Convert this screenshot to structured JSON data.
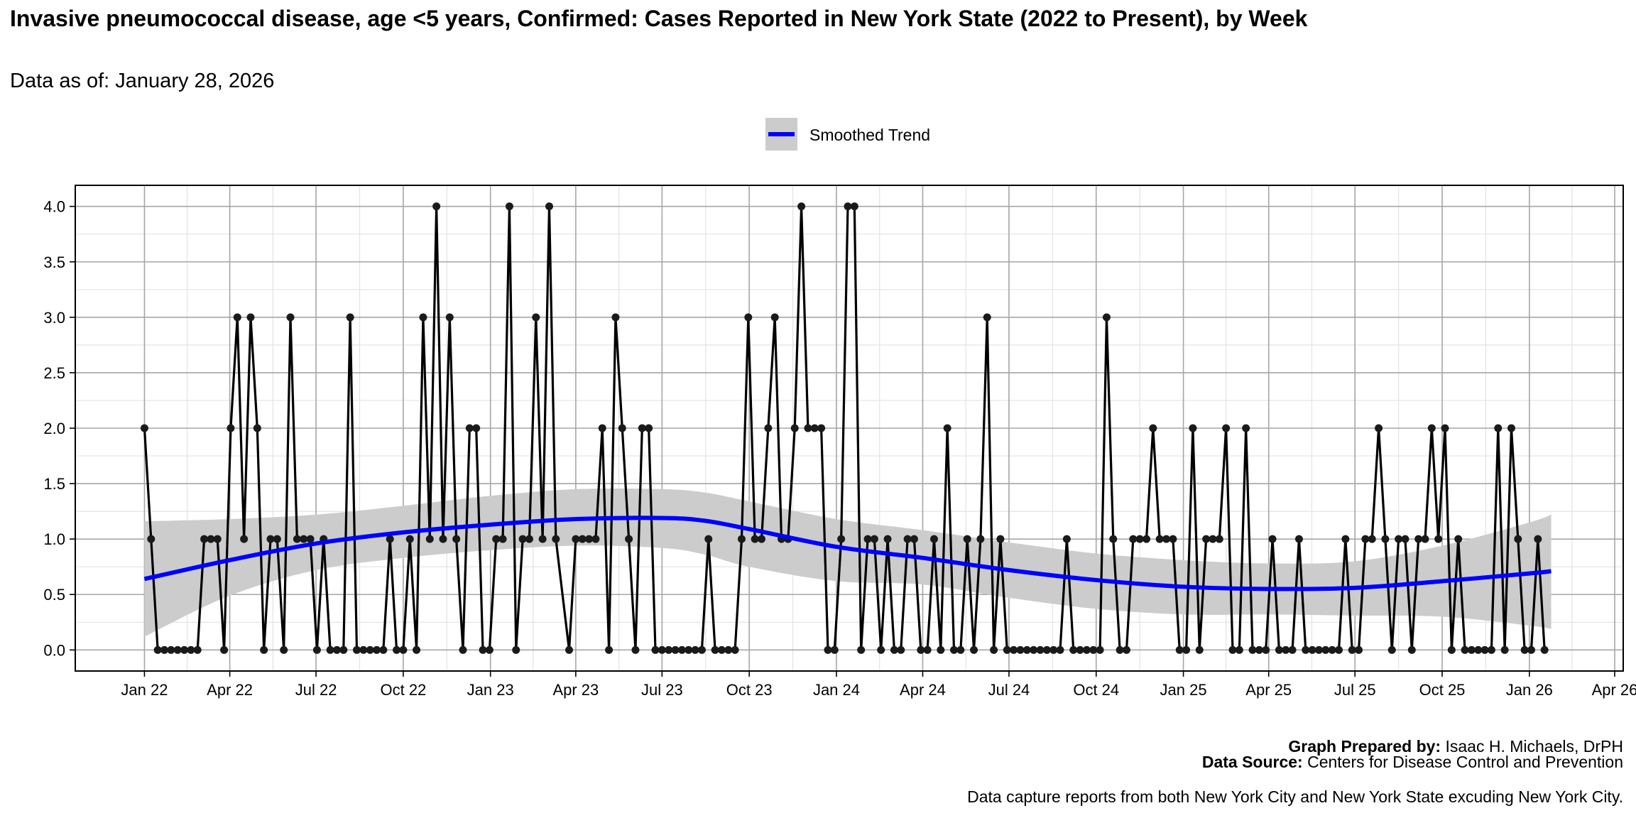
{
  "title": "Invasive pneumococcal disease, age <5 years, Confirmed: Cases Reported in New York State (2022 to Present), by Week",
  "subtitle": "Data as of: January 28, 2026",
  "footer": {
    "prepared_label": "Graph Prepared by:",
    "prepared_value": " Isaac H. Michaels, DrPH",
    "source_label": "Data Source:",
    "source_value": " Centers for Disease Control and Prevention",
    "note": "Data capture reports from both New York City and New York State excuding New York City."
  },
  "colors": {
    "trend": "#0000ff",
    "band": "#cccccc",
    "points": "#000000"
  },
  "chart_data": {
    "type": "line",
    "title": "Invasive pneumococcal disease, age <5 years, Confirmed: Cases Reported in New York State (2022 to Present), by Week",
    "xlabel": "",
    "ylabel": "",
    "ylim": [
      0,
      4
    ],
    "yticks": [
      "0.0",
      "0.5",
      "1.0",
      "1.5",
      "2.0",
      "2.5",
      "3.0",
      "3.5",
      "4.0"
    ],
    "xticks": [
      {
        "label": "Jan 22",
        "date": "2022-01-01"
      },
      {
        "label": "Apr 22",
        "date": "2022-04-01"
      },
      {
        "label": "Jul 22",
        "date": "2022-07-01"
      },
      {
        "label": "Oct 22",
        "date": "2022-10-01"
      },
      {
        "label": "Jan 23",
        "date": "2023-01-01"
      },
      {
        "label": "Apr 23",
        "date": "2023-04-01"
      },
      {
        "label": "Jul 23",
        "date": "2023-07-01"
      },
      {
        "label": "Oct 23",
        "date": "2023-10-01"
      },
      {
        "label": "Jan 24",
        "date": "2024-01-01"
      },
      {
        "label": "Apr 24",
        "date": "2024-04-01"
      },
      {
        "label": "Jul 24",
        "date": "2024-07-01"
      },
      {
        "label": "Oct 24",
        "date": "2024-10-01"
      },
      {
        "label": "Jan 25",
        "date": "2025-01-01"
      },
      {
        "label": "Apr 25",
        "date": "2025-04-01"
      },
      {
        "label": "Jul 25",
        "date": "2025-07-01"
      },
      {
        "label": "Oct 25",
        "date": "2025-10-01"
      },
      {
        "label": "Jan 26",
        "date": "2026-01-01"
      },
      {
        "label": "Apr 26",
        "date": "2026-04-01"
      }
    ],
    "grid": true,
    "legend": {
      "position": "top",
      "entries": [
        "Smoothed Trend"
      ]
    },
    "series": [
      {
        "name": "Weekly cases",
        "start_date": "2022-01-01",
        "interval_days": 7,
        "values": [
          2,
          1,
          0,
          0,
          0,
          0,
          0,
          0,
          0,
          1,
          1,
          1,
          0,
          2,
          3,
          1,
          3,
          2,
          0,
          1,
          1,
          0,
          3,
          1,
          1,
          1,
          0,
          1,
          0,
          0,
          0,
          3,
          0,
          0,
          0,
          0,
          0,
          1,
          0,
          0,
          1,
          0,
          3,
          1,
          4,
          1,
          3,
          1,
          0,
          2,
          2,
          0,
          0,
          1,
          1,
          4,
          0,
          1,
          1,
          3,
          1,
          4,
          1,
          null,
          0,
          1,
          1,
          1,
          1,
          2,
          0,
          3,
          2,
          1,
          0,
          2,
          2,
          0,
          0,
          0,
          0,
          0,
          0,
          0,
          0,
          1,
          0,
          0,
          0,
          0,
          1,
          3,
          1,
          1,
          2,
          3,
          1,
          1,
          2,
          4,
          2,
          2,
          2,
          0,
          0,
          1,
          4,
          4,
          0,
          1,
          1,
          0,
          1,
          0,
          0,
          1,
          1,
          0,
          0,
          1,
          0,
          2,
          0,
          0,
          1,
          0,
          1,
          3,
          0,
          1,
          0,
          0,
          0,
          0,
          0,
          0,
          0,
          0,
          0,
          1,
          0,
          0,
          0,
          0,
          0,
          3,
          1,
          0,
          0,
          1,
          1,
          1,
          2,
          1,
          1,
          1,
          0,
          0,
          2,
          0,
          1,
          1,
          1,
          2,
          0,
          0,
          2,
          0,
          0,
          0,
          1,
          0,
          0,
          0,
          1,
          0,
          0,
          0,
          0,
          0,
          0,
          1,
          0,
          0,
          1,
          1,
          2,
          1,
          0,
          1,
          1,
          0,
          1,
          1,
          2,
          1,
          2,
          0,
          1,
          0,
          0,
          0,
          0,
          0,
          2,
          0,
          2,
          1,
          0,
          0,
          1,
          0
        ]
      },
      {
        "name": "Smoothed Trend",
        "dates": [
          "2022-01-01",
          "2022-04-01",
          "2022-07-01",
          "2022-10-01",
          "2023-01-01",
          "2023-04-01",
          "2023-07-01",
          "2023-08-15",
          "2023-10-01",
          "2024-01-01",
          "2024-04-01",
          "2024-07-01",
          "2024-10-01",
          "2025-01-01",
          "2025-04-01",
          "2025-07-01",
          "2025-10-01",
          "2026-01-01",
          "2026-01-24"
        ],
        "values": [
          0.64,
          0.81,
          0.96,
          1.06,
          1.13,
          1.18,
          1.19,
          1.165,
          1.09,
          0.93,
          0.83,
          0.72,
          0.63,
          0.57,
          0.55,
          0.56,
          0.62,
          0.69,
          0.71
        ],
        "lower": [
          0.12,
          0.49,
          0.72,
          0.83,
          0.9,
          0.94,
          0.92,
          0.86,
          0.75,
          0.62,
          0.59,
          0.47,
          0.37,
          0.32,
          0.32,
          0.31,
          0.3,
          0.22,
          0.19
        ],
        "upper": [
          1.16,
          1.18,
          1.22,
          1.3,
          1.39,
          1.45,
          1.45,
          1.42,
          1.34,
          1.18,
          1.08,
          0.97,
          0.87,
          0.81,
          0.78,
          0.8,
          0.94,
          1.15,
          1.22
        ]
      }
    ]
  }
}
